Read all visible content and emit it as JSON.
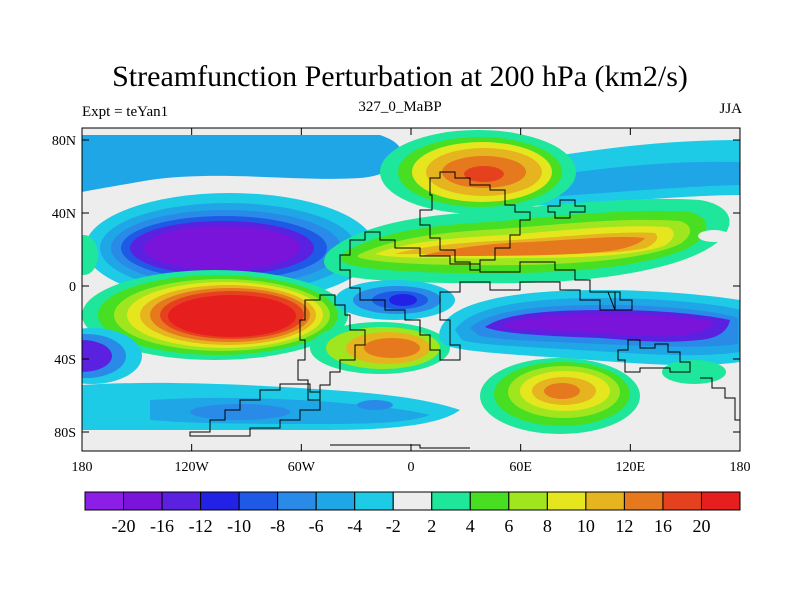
{
  "title": "Streamfunction Perturbation at 200 hPa (km2/s)",
  "left_label": "Expt = teYan1",
  "center_label": "327_0_MaBP",
  "right_label": "JJA",
  "lat_ticks": [
    "80N",
    "40N",
    "0",
    "40S",
    "80S"
  ],
  "lon_ticks": [
    "180",
    "120W",
    "60W",
    "0",
    "60E",
    "120E",
    "180"
  ],
  "colorbar": {
    "labels": [
      "-20",
      "-16",
      "-12",
      "-10",
      "-8",
      "-6",
      "-4",
      "-2",
      "2",
      "4",
      "6",
      "8",
      "10",
      "12",
      "16",
      "20"
    ],
    "colors": [
      "#8c1ee6",
      "#7a14da",
      "#5a22e0",
      "#2222e6",
      "#1e5ae6",
      "#2a8ae8",
      "#1ea6e6",
      "#1ecbe6",
      "#ededed",
      "#1ee69a",
      "#48df23",
      "#9fe61e",
      "#e6e61e",
      "#e6b41e",
      "#e6781e",
      "#e6411e",
      "#e61e1e"
    ]
  }
}
